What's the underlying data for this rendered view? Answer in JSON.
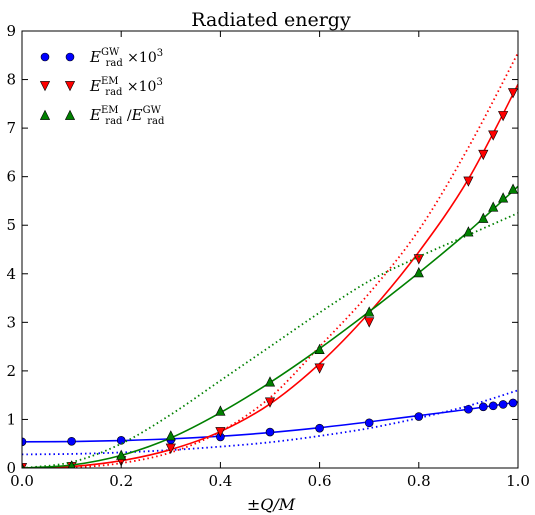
{
  "chart_data": {
    "type": "scatter",
    "title": "Radiated energy",
    "xlabel": "±Q/M",
    "ylabel": "",
    "xlim": [
      0.0,
      1.0
    ],
    "ylim": [
      0,
      9
    ],
    "x_ticks": [
      0.0,
      0.2,
      0.4,
      0.6,
      0.8,
      1.0
    ],
    "x_tick_labels": [
      "0.0",
      "0.2",
      "0.4",
      "0.6",
      "0.8",
      "1.0"
    ],
    "y_ticks": [
      0,
      1,
      2,
      3,
      4,
      5,
      6,
      7,
      8,
      9
    ],
    "y_tick_labels": [
      "0",
      "1",
      "2",
      "3",
      "4",
      "5",
      "6",
      "7",
      "8",
      "9"
    ],
    "grid": false,
    "legend_position": "top-left",
    "series": [
      {
        "name": "E_rad^GW ×10^3",
        "legend": {
          "main": "E",
          "sub": "rad",
          "sup": "GW",
          "suffix": "×10",
          "suffix_sup": "3"
        },
        "color": "#0000ff",
        "marker": "circle",
        "x": [
          0.0,
          0.1,
          0.2,
          0.3,
          0.4,
          0.5,
          0.6,
          0.7,
          0.8,
          0.9,
          0.93,
          0.95,
          0.97,
          0.99
        ],
        "y": [
          0.54,
          0.55,
          0.57,
          0.58,
          0.64,
          0.74,
          0.82,
          0.93,
          1.06,
          1.21,
          1.26,
          1.28,
          1.31,
          1.34
        ],
        "fit_solid": {
          "x": [
            0.0,
            0.1,
            0.2,
            0.3,
            0.4,
            0.5,
            0.6,
            0.7,
            0.8,
            0.9,
            1.0
          ],
          "y": [
            0.54,
            0.545,
            0.565,
            0.6,
            0.655,
            0.73,
            0.83,
            0.95,
            1.08,
            1.21,
            1.36
          ]
        },
        "fit_dotted": {
          "x": [
            0.0,
            0.1,
            0.2,
            0.3,
            0.4,
            0.5,
            0.6,
            0.7,
            0.8,
            0.9,
            1.0
          ],
          "y": [
            0.28,
            0.29,
            0.32,
            0.37,
            0.44,
            0.53,
            0.66,
            0.82,
            1.03,
            1.28,
            1.6
          ]
        }
      },
      {
        "name": "E_rad^EM ×10^3",
        "legend": {
          "main": "E",
          "sub": "rad",
          "sup": "EM",
          "suffix": "×10",
          "suffix_sup": "3"
        },
        "color": "#ff0000",
        "marker": "triangle-down",
        "x": [
          0.0,
          0.1,
          0.2,
          0.3,
          0.4,
          0.5,
          0.6,
          0.7,
          0.8,
          0.9,
          0.93,
          0.95,
          0.97,
          0.99
        ],
        "y": [
          0.0,
          0.02,
          0.14,
          0.4,
          0.74,
          1.35,
          2.05,
          3.0,
          4.3,
          5.9,
          6.45,
          6.85,
          7.25,
          7.72
        ],
        "fit_solid": {
          "x": [
            0.0,
            0.1,
            0.2,
            0.3,
            0.4,
            0.5,
            0.6,
            0.7,
            0.8,
            0.9,
            1.0
          ],
          "y": [
            0.0,
            0.03,
            0.15,
            0.38,
            0.75,
            1.32,
            2.15,
            3.2,
            4.45,
            5.95,
            7.9
          ]
        },
        "fit_dotted": {
          "x": [
            0.0,
            0.1,
            0.2,
            0.3,
            0.4,
            0.5,
            0.6,
            0.7,
            0.8,
            0.9,
            1.0
          ],
          "y": [
            0.0,
            0.01,
            0.1,
            0.32,
            0.75,
            1.45,
            2.5,
            3.6,
            4.9,
            6.6,
            8.55
          ]
        }
      },
      {
        "name": "E_rad^EM / E_rad^GW",
        "legend": {
          "main": "E",
          "sub": "rad",
          "sup": "EM",
          "divider": "/",
          "main2": "E",
          "sub2": "rad",
          "sup2": "GW"
        },
        "color": "#008000",
        "marker": "triangle-up",
        "x": [
          0.0,
          0.1,
          0.2,
          0.3,
          0.4,
          0.5,
          0.6,
          0.7,
          0.8,
          0.9,
          0.93,
          0.95,
          0.97,
          0.99
        ],
        "y": [
          0.0,
          0.05,
          0.27,
          0.67,
          1.18,
          1.78,
          2.45,
          3.22,
          4.03,
          4.87,
          5.15,
          5.38,
          5.57,
          5.75
        ],
        "fit_solid": {
          "x": [
            0.0,
            0.1,
            0.2,
            0.3,
            0.4,
            0.5,
            0.6,
            0.7,
            0.8,
            0.9,
            1.0
          ],
          "y": [
            0.0,
            0.06,
            0.26,
            0.62,
            1.14,
            1.76,
            2.46,
            3.22,
            4.02,
            4.87,
            5.8
          ]
        },
        "fit_dotted": {
          "x": [
            0.0,
            0.1,
            0.2,
            0.3,
            0.4,
            0.5,
            0.6,
            0.7,
            0.8,
            0.9,
            1.0
          ],
          "y": [
            0.0,
            0.12,
            0.5,
            1.1,
            1.8,
            2.5,
            3.2,
            3.85,
            4.35,
            4.8,
            5.25
          ]
        }
      }
    ]
  }
}
